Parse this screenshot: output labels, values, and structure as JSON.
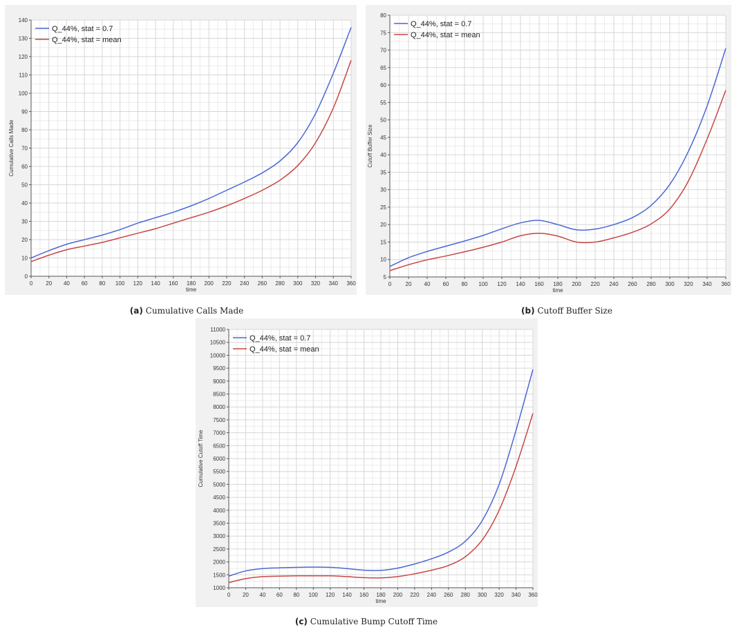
{
  "chart_data": [
    {
      "type": "line",
      "xlabel": "time",
      "ylabel": "Cumulative Calls Made",
      "xlim": [
        0,
        360
      ],
      "ylim": [
        0,
        140
      ],
      "xticks": [
        0,
        20,
        40,
        60,
        80,
        100,
        120,
        140,
        160,
        180,
        200,
        220,
        240,
        260,
        280,
        300,
        320,
        340,
        360
      ],
      "yticks": [
        0,
        10,
        20,
        30,
        40,
        50,
        60,
        70,
        80,
        90,
        100,
        110,
        120,
        130,
        140
      ],
      "grid": true,
      "legend_position": "top-left",
      "x": [
        0,
        20,
        40,
        60,
        80,
        100,
        120,
        140,
        160,
        180,
        200,
        220,
        240,
        260,
        280,
        300,
        320,
        340,
        360
      ],
      "series": [
        {
          "name": "Q_44%, stat = 0.7",
          "color": "#4b66d6",
          "values": [
            10,
            14,
            17.5,
            20,
            22.5,
            25.5,
            29,
            32,
            35,
            38.5,
            42.5,
            47,
            51.5,
            56.5,
            63,
            73,
            89,
            111,
            136
          ]
        },
        {
          "name": "Q_44%, stat = mean",
          "color": "#c84545",
          "values": [
            8,
            11.5,
            14.5,
            16.5,
            18.5,
            21,
            23.5,
            26,
            29,
            32,
            35,
            38.5,
            42.5,
            47,
            52.5,
            60.5,
            73,
            92,
            118
          ]
        }
      ],
      "caption_label": "(a)",
      "caption_text": "Cumulative Calls Made"
    },
    {
      "type": "line",
      "xlabel": "time",
      "ylabel": "Cutoff Buffer Size",
      "xlim": [
        0,
        360
      ],
      "ylim": [
        5,
        80
      ],
      "xticks": [
        0,
        20,
        40,
        60,
        80,
        100,
        120,
        140,
        160,
        180,
        200,
        220,
        240,
        260,
        280,
        300,
        320,
        340,
        360
      ],
      "yticks": [
        5,
        10,
        15,
        20,
        25,
        30,
        35,
        40,
        45,
        50,
        55,
        60,
        65,
        70,
        75,
        80
      ],
      "grid": true,
      "legend_position": "top-left",
      "x": [
        0,
        20,
        40,
        60,
        80,
        100,
        120,
        140,
        160,
        180,
        200,
        220,
        240,
        260,
        280,
        300,
        320,
        340,
        360
      ],
      "series": [
        {
          "name": "Q_44%, stat = 0.7",
          "color": "#4b66d6",
          "values": [
            8,
            10.5,
            12.3,
            13.8,
            15.3,
            16.9,
            18.8,
            20.5,
            21.2,
            20,
            18.5,
            18.7,
            20,
            22,
            25.5,
            31.5,
            41,
            54,
            70.5
          ]
        },
        {
          "name": "Q_44%, stat = mean",
          "color": "#c84545",
          "values": [
            6.8,
            8.5,
            9.9,
            11,
            12.2,
            13.5,
            15,
            16.8,
            17.5,
            16.7,
            15,
            15,
            16.2,
            17.8,
            20.2,
            24.5,
            32.5,
            44.5,
            58.5
          ]
        }
      ],
      "caption_label": "(b)",
      "caption_text": "Cutoff Buffer Size"
    },
    {
      "type": "line",
      "xlabel": "time",
      "ylabel": "Cumulative Cutoff Time",
      "xlim": [
        0,
        360
      ],
      "ylim": [
        1000,
        11000
      ],
      "xticks": [
        0,
        20,
        40,
        60,
        80,
        100,
        120,
        140,
        160,
        180,
        200,
        220,
        240,
        260,
        280,
        300,
        320,
        340,
        360
      ],
      "yticks": [
        1000,
        1500,
        2000,
        2500,
        3000,
        3500,
        4000,
        4500,
        5000,
        5500,
        6000,
        6500,
        7000,
        7500,
        8000,
        8500,
        9000,
        9500,
        10000,
        10500,
        11000
      ],
      "grid": true,
      "legend_position": "top-left",
      "x": [
        0,
        20,
        40,
        60,
        80,
        100,
        120,
        140,
        160,
        180,
        200,
        220,
        240,
        260,
        280,
        300,
        320,
        340,
        360
      ],
      "series": [
        {
          "name": "Q_44%, stat = 0.7",
          "color": "#4b66d6",
          "values": [
            1450,
            1650,
            1740,
            1770,
            1790,
            1800,
            1790,
            1740,
            1680,
            1670,
            1760,
            1920,
            2120,
            2380,
            2800,
            3600,
            5000,
            7100,
            9450
          ]
        },
        {
          "name": "Q_44%, stat = mean",
          "color": "#c84545",
          "values": [
            1200,
            1350,
            1430,
            1450,
            1460,
            1460,
            1460,
            1430,
            1390,
            1380,
            1430,
            1540,
            1680,
            1860,
            2200,
            2850,
            4000,
            5700,
            7750
          ]
        }
      ],
      "caption_label": "(c)",
      "caption_text": "Cumulative Bump Cutoff Time"
    }
  ]
}
